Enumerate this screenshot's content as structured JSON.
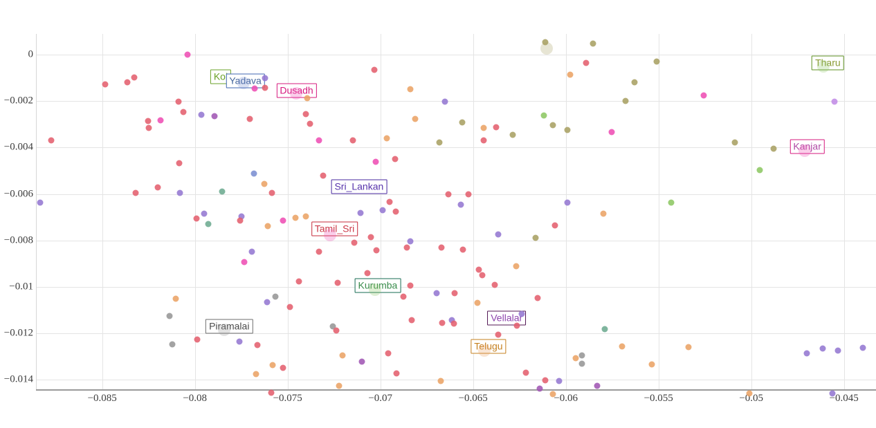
{
  "chart_data": {
    "type": "scatter",
    "title": "",
    "xlabel": "",
    "ylabel": "",
    "grid": true,
    "x_range": [
      -0.0885,
      -0.0433
    ],
    "y_range": [
      -0.0153,
      0.0007
    ],
    "x_ticks": [
      -0.085,
      -0.08,
      -0.075,
      -0.07,
      -0.065,
      -0.06,
      -0.055,
      -0.05,
      -0.045
    ],
    "x_tick_labels": [
      "−0.085",
      "−0.08",
      "−0.075",
      "−0.07",
      "−0.065",
      "−0.06",
      "−0.055",
      "−0.05",
      "−0.045"
    ],
    "y_ticks": [
      0,
      -0.002,
      -0.004,
      -0.006,
      -0.008,
      -0.01,
      -0.012,
      -0.014
    ],
    "y_tick_labels": [
      "0",
      "−0.002",
      "−0.004",
      "−0.006",
      "−0.008",
      "−0.01",
      "−0.012",
      "−0.014"
    ],
    "palette": {
      "red": "#e4606e",
      "pink": "#ee4fb4",
      "purple": "#9477d2",
      "violet": "#a156b4",
      "blue": "#7b8ed2",
      "orange": "#eaa365",
      "olive": "#a9a163",
      "green": "#8dc763",
      "teal": "#6dab91",
      "gray": "#969696",
      "orchid": "#c28ce6"
    },
    "annotations": [
      {
        "label": "Kol",
        "x": -0.07861,
        "y": -0.00094,
        "border": "#6aa127",
        "text_color": "#6aa127"
      },
      {
        "label": "Yadava",
        "x": -0.07728,
        "y": -0.00113,
        "border": "#3f66b0",
        "text_color": "#48699e"
      },
      {
        "label": "Dusadh",
        "x": -0.07452,
        "y": -0.00155,
        "border": "#d6187e",
        "text_color": "#d6187e"
      },
      {
        "label": "Tharu",
        "x": -0.04587,
        "y": -0.00035,
        "border": "#5d9121",
        "text_color": "#8a9b35"
      },
      {
        "label": "Kanjar",
        "x": -0.04698,
        "y": -0.00396,
        "border": "#d6187e",
        "text_color": "#b04aa5"
      },
      {
        "label": "Sri_Lankan",
        "x": -0.07115,
        "y": -0.00568,
        "border": "#47279f",
        "text_color": "#5733ab"
      },
      {
        "label": "Tamil_Sri",
        "x": -0.07247,
        "y": -0.0075,
        "border": "#c62839",
        "text_color": "#cc3a4a"
      },
      {
        "label": "Kurumba",
        "x": -0.07014,
        "y": -0.00994,
        "border": "#166b52",
        "text_color": "#3a8c4c"
      },
      {
        "label": "Piramalai",
        "x": -0.07815,
        "y": -0.01171,
        "border": "#6e6e6e",
        "text_color": "#4a4a4a"
      },
      {
        "label": "Vellalar",
        "x": -0.06319,
        "y": -0.01135,
        "border": "#511453",
        "text_color": "#8e44ad"
      },
      {
        "label": "Telugu",
        "x": -0.06417,
        "y": -0.01255,
        "border": "#c5801f",
        "text_color": "#c5801f"
      }
    ],
    "highlights": [
      [
        -0.07738,
        -0.00122,
        "blue"
      ],
      [
        -0.07454,
        -0.00167,
        "pink"
      ],
      [
        -0.04611,
        -0.00051,
        "green"
      ],
      [
        -0.04712,
        -0.00414,
        "pink"
      ],
      [
        -0.07271,
        -0.00777,
        "pink"
      ],
      [
        -0.07029,
        -0.01012,
        "green"
      ],
      [
        -0.07842,
        -0.01185,
        "gray"
      ],
      [
        -0.06439,
        -0.01274,
        "orange"
      ],
      [
        -0.06103,
        0.00027,
        "olive"
      ]
    ],
    "points": [
      [
        -0.0804,
        0.0,
        "pink"
      ],
      [
        -0.08485,
        -0.00127,
        "red"
      ],
      [
        -0.08363,
        -0.00119,
        "red"
      ],
      [
        -0.08327,
        -0.00097,
        "red"
      ],
      [
        -0.07677,
        -0.00147,
        "pink"
      ],
      [
        -0.07621,
        -0.00142,
        "red"
      ],
      [
        -0.07621,
        -0.001,
        "purple"
      ],
      [
        -0.08087,
        -0.00203,
        "red"
      ],
      [
        -0.08062,
        -0.00246,
        "red"
      ],
      [
        -0.07966,
        -0.00259,
        "purple"
      ],
      [
        -0.07894,
        -0.00266,
        "violet"
      ],
      [
        -0.08251,
        -0.00286,
        "red"
      ],
      [
        -0.08184,
        -0.00284,
        "pink"
      ],
      [
        -0.08249,
        -0.00315,
        "red"
      ],
      [
        -0.07704,
        -0.00276,
        "red"
      ],
      [
        -0.08775,
        -0.0037,
        "red"
      ],
      [
        -0.08085,
        -0.00467,
        "red"
      ],
      [
        -0.07683,
        -0.00511,
        "blue"
      ],
      [
        -0.07627,
        -0.00556,
        "orange"
      ],
      [
        -0.08199,
        -0.00571,
        "red"
      ],
      [
        -0.0832,
        -0.00596,
        "red"
      ],
      [
        -0.07853,
        -0.0059,
        "teal"
      ],
      [
        -0.07586,
        -0.00596,
        "red"
      ],
      [
        -0.0808,
        -0.00596,
        "purple"
      ],
      [
        -0.08834,
        -0.00638,
        "purple"
      ],
      [
        -0.07991,
        -0.00705,
        "red"
      ],
      [
        -0.0795,
        -0.00686,
        "purple"
      ],
      [
        -0.07929,
        -0.00729,
        "teal"
      ],
      [
        -0.07748,
        -0.00696,
        "purple"
      ],
      [
        -0.07755,
        -0.00715,
        "red"
      ],
      [
        -0.07606,
        -0.00737,
        "orange"
      ],
      [
        -0.07524,
        -0.00715,
        "pink"
      ],
      [
        -0.07032,
        -0.00065,
        "red"
      ],
      [
        -0.06837,
        -0.00148,
        "orange"
      ],
      [
        -0.07394,
        -0.00188,
        "orange"
      ],
      [
        -0.06653,
        -0.00201,
        "purple"
      ],
      [
        -0.07401,
        -0.00256,
        "red"
      ],
      [
        -0.07381,
        -0.00299,
        "red"
      ],
      [
        -0.06812,
        -0.00276,
        "orange"
      ],
      [
        -0.0656,
        -0.00291,
        "olive"
      ],
      [
        -0.06118,
        -0.00261,
        "green"
      ],
      [
        -0.0607,
        -0.00304,
        "olive"
      ],
      [
        -0.06442,
        -0.00315,
        "orange"
      ],
      [
        -0.06375,
        -0.00313,
        "red"
      ],
      [
        -0.06287,
        -0.00345,
        "olive"
      ],
      [
        -0.05992,
        -0.00323,
        "olive"
      ],
      [
        -0.0733,
        -0.00369,
        "pink"
      ],
      [
        -0.07147,
        -0.00369,
        "red"
      ],
      [
        -0.06966,
        -0.00359,
        "orange"
      ],
      [
        -0.06681,
        -0.00377,
        "olive"
      ],
      [
        -0.06444,
        -0.00369,
        "red"
      ],
      [
        -0.0692,
        -0.00449,
        "red"
      ],
      [
        -0.07026,
        -0.0046,
        "pink"
      ],
      [
        -0.07307,
        -0.0052,
        "red"
      ],
      [
        -0.06634,
        -0.00601,
        "red"
      ],
      [
        -0.06526,
        -0.00601,
        "red"
      ],
      [
        -0.0695,
        -0.00633,
        "red"
      ],
      [
        -0.06567,
        -0.00646,
        "purple"
      ],
      [
        -0.05992,
        -0.00638,
        "purple"
      ],
      [
        -0.06989,
        -0.00671,
        "purple"
      ],
      [
        -0.06916,
        -0.00676,
        "red"
      ],
      [
        -0.07107,
        -0.00683,
        "purple"
      ],
      [
        -0.07457,
        -0.00702,
        "orange"
      ],
      [
        -0.07403,
        -0.00696,
        "orange"
      ],
      [
        -0.06058,
        -0.00735,
        "red"
      ],
      [
        -0.0589,
        -0.00035,
        "red"
      ],
      [
        -0.05977,
        -0.00085,
        "orange"
      ],
      [
        -0.06112,
        0.00054,
        "olive"
      ],
      [
        -0.05855,
        0.00049,
        "olive"
      ],
      [
        -0.06364,
        -0.00775,
        "purple"
      ],
      [
        -0.05509,
        -0.00031,
        "olive"
      ],
      [
        -0.05628,
        -0.0012,
        "olive"
      ],
      [
        -0.05677,
        -0.00199,
        "olive"
      ],
      [
        -0.05258,
        -0.00177,
        "pink"
      ],
      [
        -0.05752,
        -0.00332,
        "pink"
      ],
      [
        -0.0509,
        -0.00378,
        "olive"
      ],
      [
        -0.04881,
        -0.00405,
        "olive"
      ],
      [
        -0.04552,
        -0.00203,
        "orchid"
      ],
      [
        -0.04955,
        -0.00496,
        "green"
      ],
      [
        -0.05432,
        -0.00638,
        "green"
      ],
      [
        -0.05799,
        -0.00686,
        "orange"
      ],
      [
        -0.07693,
        -0.00849,
        "purple"
      ],
      [
        -0.07733,
        -0.00894,
        "pink"
      ],
      [
        -0.0744,
        -0.00977,
        "red"
      ],
      [
        -0.07229,
        -0.00983,
        "red"
      ],
      [
        -0.07332,
        -0.00849,
        "red"
      ],
      [
        -0.07139,
        -0.00809,
        "red"
      ],
      [
        -0.07051,
        -0.00785,
        "red"
      ],
      [
        -0.07021,
        -0.00841,
        "red"
      ],
      [
        -0.07071,
        -0.0094,
        "red"
      ],
      [
        -0.06856,
        -0.0083,
        "red"
      ],
      [
        -0.06875,
        -0.01043,
        "red"
      ],
      [
        -0.08104,
        -0.01051,
        "orange"
      ],
      [
        -0.08137,
        -0.01124,
        "gray"
      ],
      [
        -0.08122,
        -0.01246,
        "gray"
      ],
      [
        -0.07565,
        -0.01042,
        "gray"
      ],
      [
        -0.07611,
        -0.01065,
        "purple"
      ],
      [
        -0.07488,
        -0.01086,
        "red"
      ],
      [
        -0.07987,
        -0.01226,
        "red"
      ],
      [
        -0.0776,
        -0.01234,
        "purple"
      ],
      [
        -0.07662,
        -0.01251,
        "red"
      ],
      [
        -0.0758,
        -0.01336,
        "orange"
      ],
      [
        -0.07524,
        -0.01349,
        "red"
      ],
      [
        -0.07671,
        -0.01374,
        "orange"
      ],
      [
        -0.0759,
        -0.01455,
        "red"
      ],
      [
        -0.07258,
        -0.01169,
        "gray"
      ],
      [
        -0.07238,
        -0.01187,
        "red"
      ],
      [
        -0.07204,
        -0.01296,
        "orange"
      ],
      [
        -0.07101,
        -0.01322,
        "violet"
      ],
      [
        -0.06959,
        -0.01286,
        "red"
      ],
      [
        -0.06914,
        -0.01372,
        "red"
      ],
      [
        -0.07223,
        -0.01425,
        "orange"
      ],
      [
        -0.0684,
        -0.00804,
        "purple"
      ],
      [
        -0.06669,
        -0.00831,
        "red"
      ],
      [
        -0.06554,
        -0.00838,
        "red"
      ],
      [
        -0.06162,
        -0.00789,
        "olive"
      ],
      [
        -0.0647,
        -0.00926,
        "red"
      ],
      [
        -0.06449,
        -0.0095,
        "red"
      ],
      [
        -0.06268,
        -0.0091,
        "orange"
      ],
      [
        -0.06382,
        -0.00992,
        "red"
      ],
      [
        -0.06837,
        -0.00995,
        "red"
      ],
      [
        -0.06698,
        -0.01026,
        "purple"
      ],
      [
        -0.06601,
        -0.01027,
        "red"
      ],
      [
        -0.06151,
        -0.01048,
        "red"
      ],
      [
        -0.06476,
        -0.01068,
        "orange"
      ],
      [
        -0.06831,
        -0.01144,
        "red"
      ],
      [
        -0.06666,
        -0.01155,
        "red"
      ],
      [
        -0.06616,
        -0.01144,
        "purple"
      ],
      [
        -0.06603,
        -0.01157,
        "red"
      ],
      [
        -0.06237,
        -0.01116,
        "purple"
      ],
      [
        -0.06265,
        -0.01166,
        "red"
      ],
      [
        -0.06364,
        -0.01205,
        "red"
      ],
      [
        -0.05791,
        -0.01181,
        "teal"
      ],
      [
        -0.05696,
        -0.01256,
        "orange"
      ],
      [
        -0.05947,
        -0.01307,
        "orange"
      ],
      [
        -0.05914,
        -0.01294,
        "gray"
      ],
      [
        -0.05914,
        -0.01329,
        "gray"
      ],
      [
        -0.05536,
        -0.01334,
        "orange"
      ],
      [
        -0.05337,
        -0.01259,
        "orange"
      ],
      [
        -0.06215,
        -0.0137,
        "red"
      ],
      [
        -0.0611,
        -0.01402,
        "red"
      ],
      [
        -0.06036,
        -0.01405,
        "purple"
      ],
      [
        -0.06141,
        -0.01437,
        "violet"
      ],
      [
        -0.06069,
        -0.0146,
        "orange"
      ],
      [
        -0.06675,
        -0.01405,
        "orange"
      ],
      [
        -0.05832,
        -0.01425,
        "violet"
      ],
      [
        -0.04701,
        -0.01285,
        "purple"
      ],
      [
        -0.04615,
        -0.01264,
        "purple"
      ],
      [
        -0.04533,
        -0.01273,
        "purple"
      ],
      [
        -0.04399,
        -0.01263,
        "purple"
      ],
      [
        -0.04561,
        -0.01458,
        "purple"
      ],
      [
        -0.05011,
        -0.01458,
        "orange"
      ]
    ]
  }
}
